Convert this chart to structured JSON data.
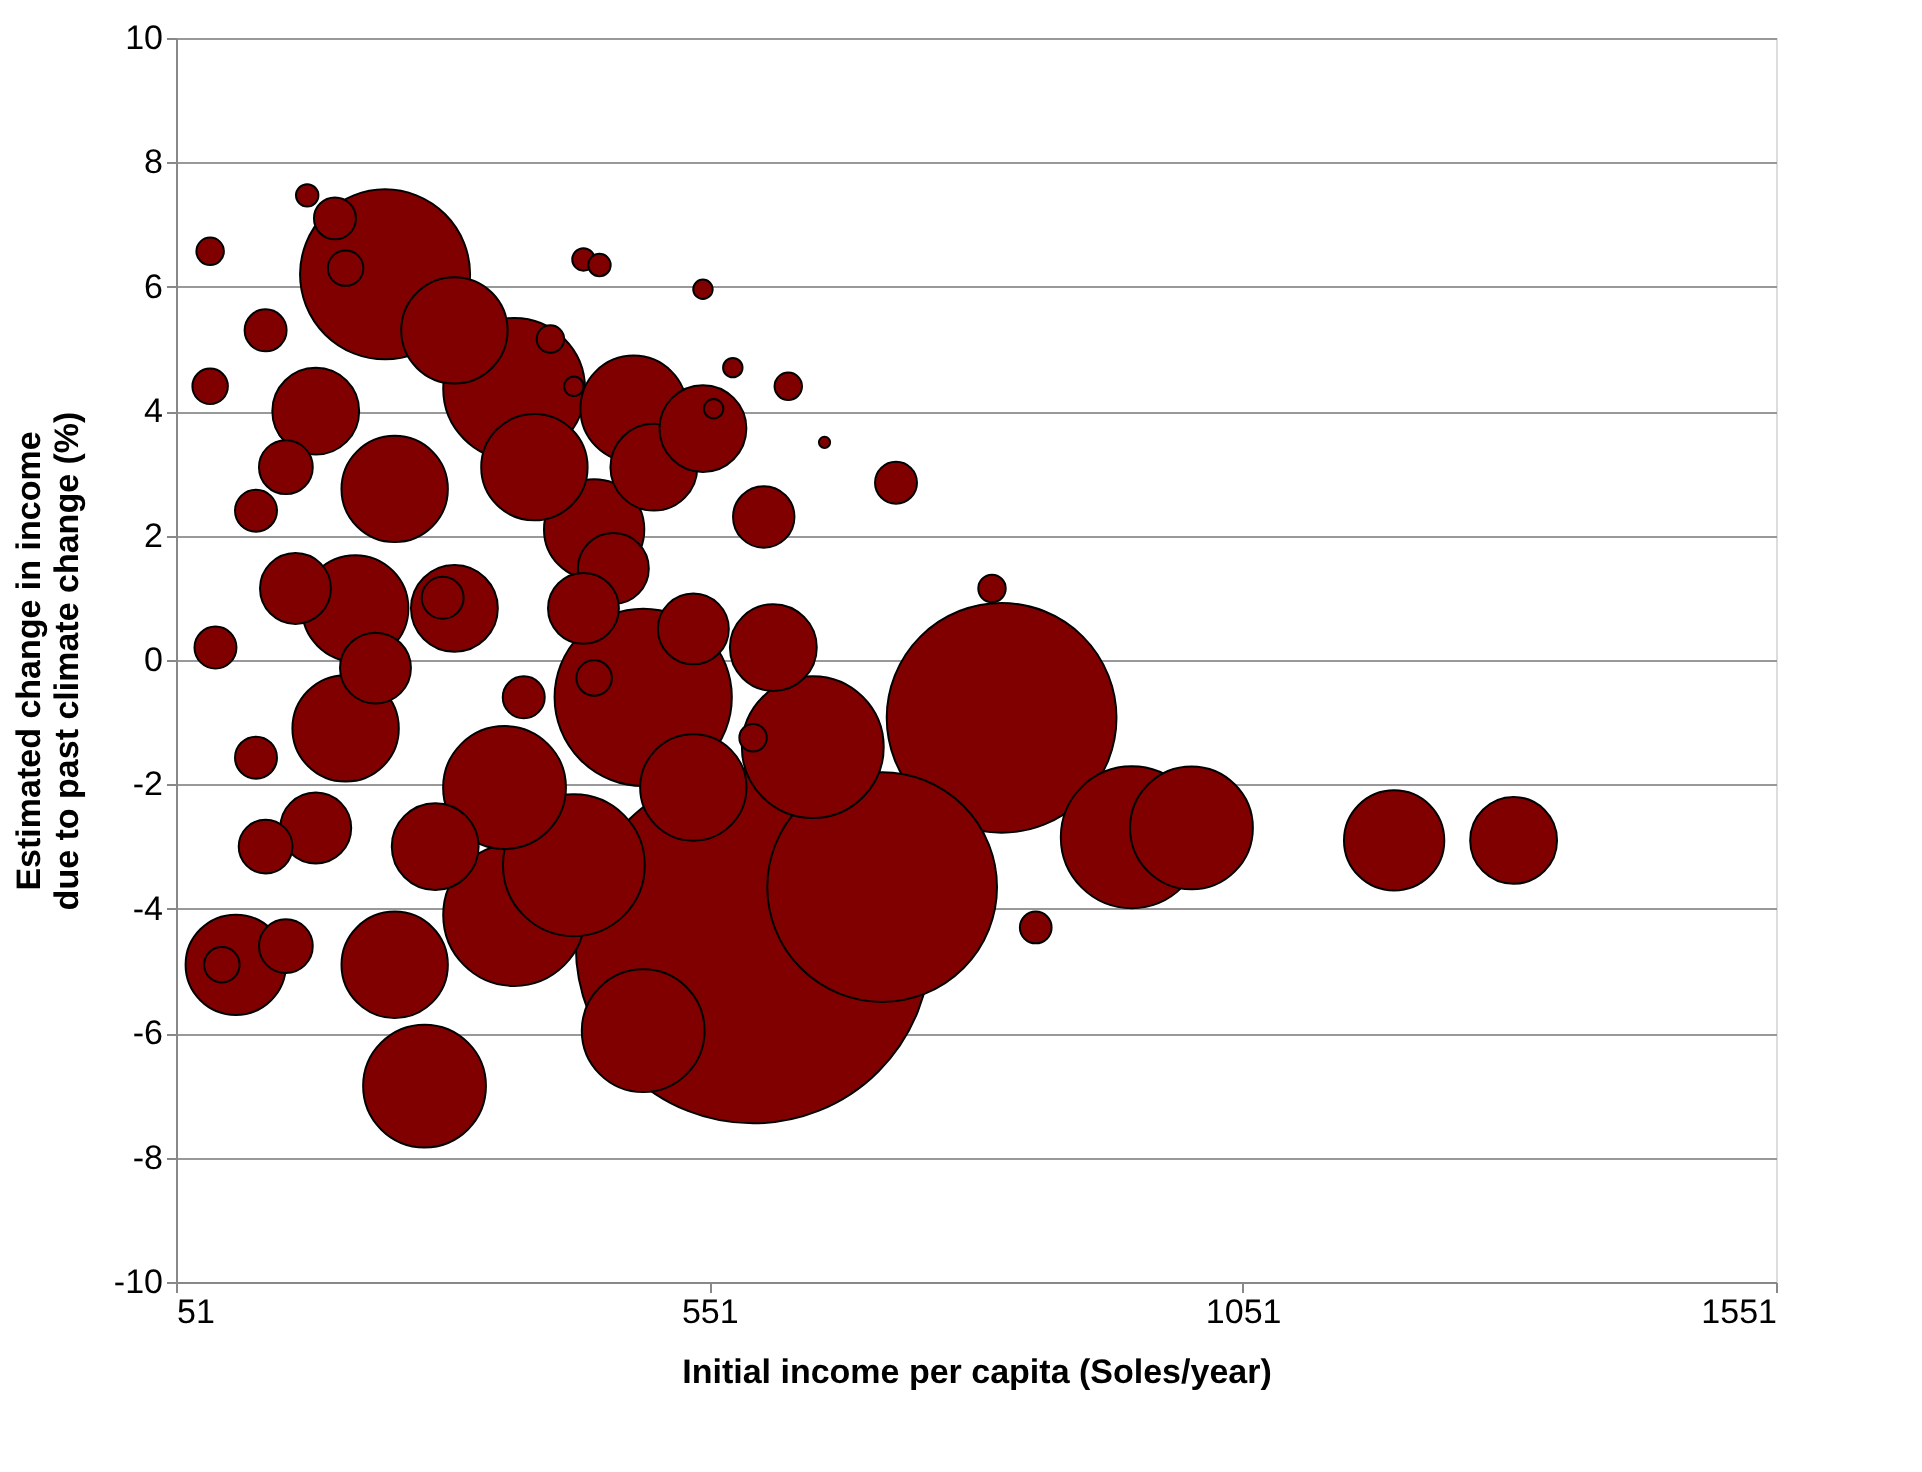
{
  "chart_data": {
    "type": "bubble",
    "xlabel": "Initial income per capita (Soles/year)",
    "ylabel": "Estimated change in income\ndue to past climate change  (%)",
    "xlim": [
      51,
      1551
    ],
    "xticks": [
      51,
      551,
      1051,
      1551
    ],
    "ylim": [
      -10,
      10
    ],
    "yticks": [
      -10,
      -8,
      -6,
      -4,
      -2,
      0,
      2,
      4,
      6,
      8,
      10
    ],
    "grid": "y",
    "legend": false,
    "series": [
      {
        "color": "#800000",
        "x": [
          592,
          825,
          713,
          489,
          247,
          947,
          368,
          424,
          648,
          1003,
          359,
          284,
          489,
          107,
          1193,
          1305,
          210,
          219,
          256,
          368,
          312,
          480,
          443,
          387,
          256,
          536,
          182,
          611,
          294,
          499,
          545,
          312,
          602,
          461,
          433,
          536,
          182,
          163,
          238,
          154,
          154,
          135,
          126,
          126,
          135,
          200,
          377,
          726,
          443,
          301,
          88,
          83,
          94,
          210,
          83,
          402,
          816,
          857,
          625,
          592,
          174,
          433,
          448,
          545,
          424,
          573,
          555,
          659
        ],
        "values": [
          -4.6,
          -0.93,
          -3.65,
          -0.6,
          6.2,
          -2.85,
          -4.1,
          -3.3,
          -1.4,
          -2.7,
          -2.05,
          -6.85,
          -5.96,
          -4.9,
          -2.9,
          -2.9,
          -1.1,
          0.83,
          2.75,
          4.36,
          5.3,
          4.04,
          2.1,
          3.1,
          -4.9,
          -2.05,
          4.0,
          0.2,
          -3.0,
          3.1,
          3.72,
          0.83,
          2.3,
          1.47,
          0.83,
          0.5,
          -2.7,
          1.15,
          -0.13,
          3.1,
          -4.6,
          -3.0,
          -1.57,
          2.4,
          5.3,
          7.1,
          -0.6,
          2.85,
          -0.29,
          1.0,
          0.2,
          4.4,
          -4.9,
          6.3,
          6.57,
          5.16,
          1.15,
          -4.3,
          4.4,
          -1.25,
          7.47,
          6.44,
          6.35,
          5.96,
          4.4,
          4.7,
          4.04,
          3.5
        ],
        "sizes": [
          1,
          0.42,
          0.42,
          0.25,
          0.23,
          0.16,
          0.16,
          0.16,
          0.16,
          0.12,
          0.12,
          0.12,
          0.12,
          0.08,
          0.08,
          0.06,
          0.09,
          0.09,
          0.09,
          0.16,
          0.09,
          0.09,
          0.08,
          0.09,
          0.09,
          0.09,
          0.06,
          0.06,
          0.06,
          0.06,
          0.06,
          0.06,
          0.03,
          0.04,
          0.04,
          0.04,
          0.04,
          0.04,
          0.04,
          0.023,
          0.023,
          0.023,
          0.014,
          0.014,
          0.014,
          0.014,
          0.014,
          0.014,
          0.01,
          0.014,
          0.014,
          0.01,
          0.01,
          0.01,
          0.006,
          0.006,
          0.006,
          0.008,
          0.006,
          0.006,
          0.004,
          0.004,
          0.004,
          0.003,
          0.003,
          0.003,
          0.003,
          0.001
        ]
      }
    ]
  }
}
